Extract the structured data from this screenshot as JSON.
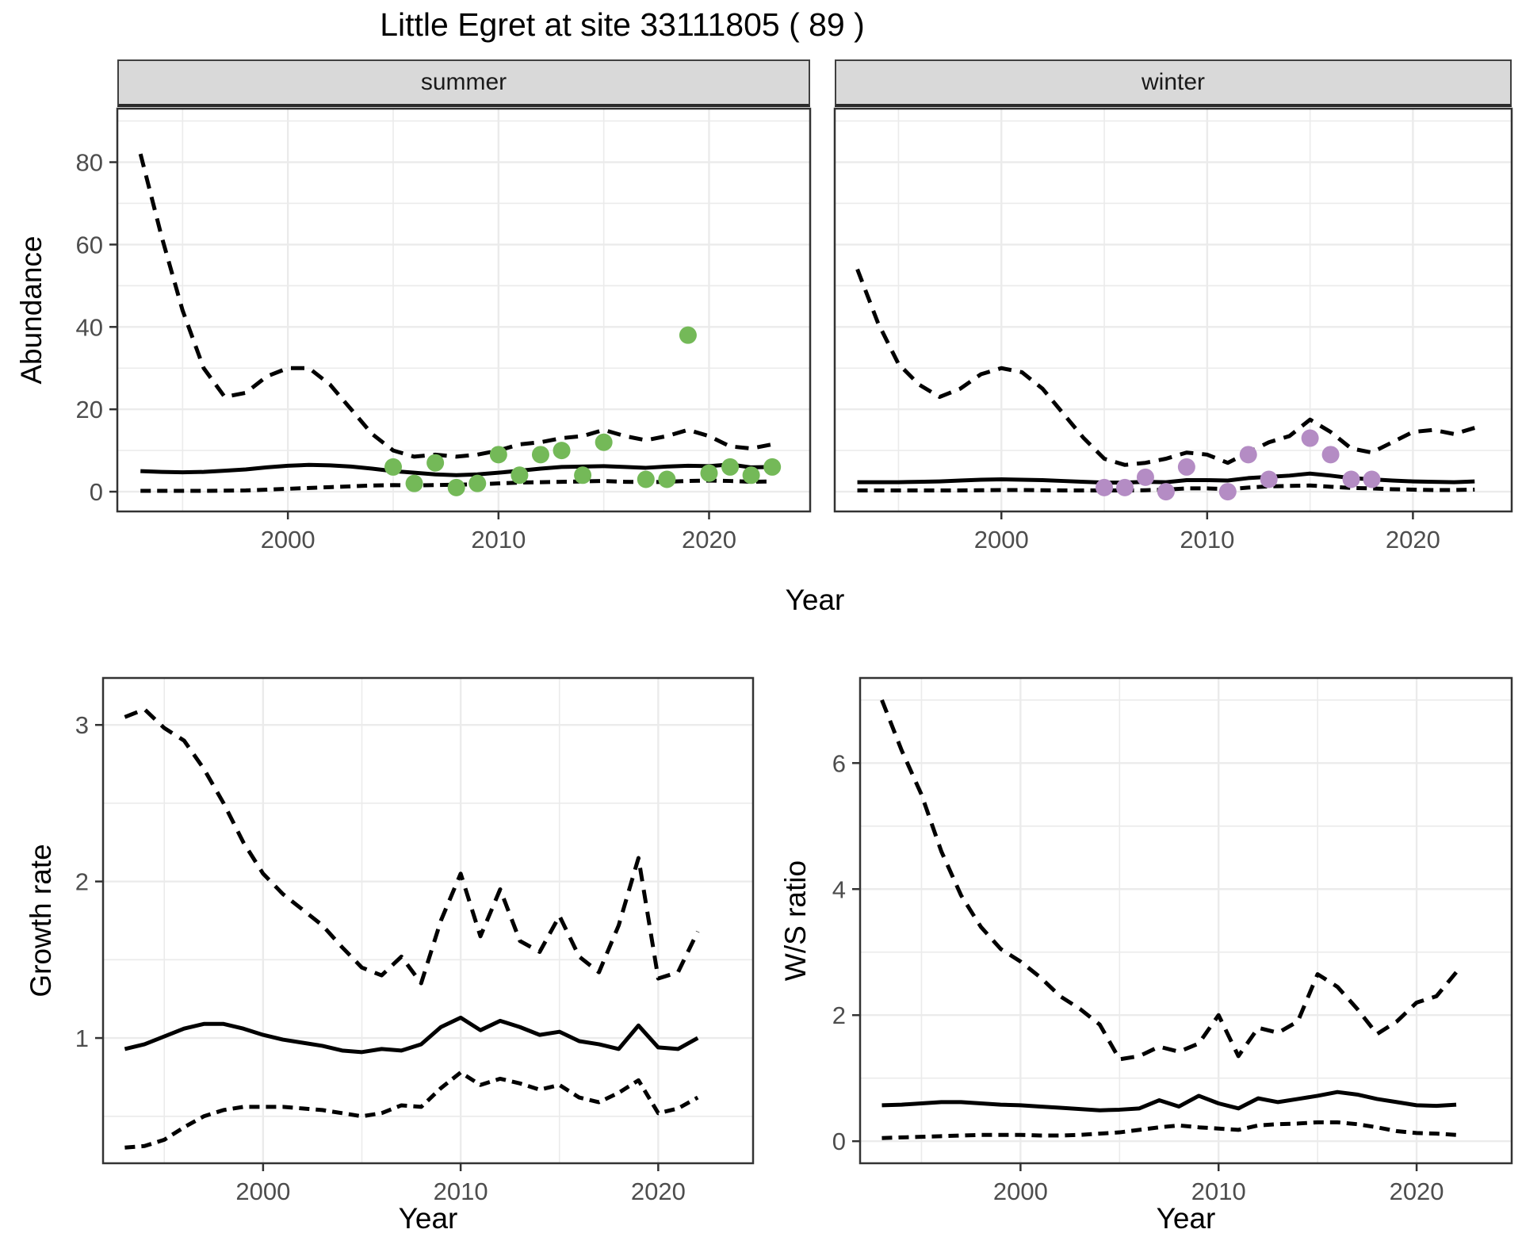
{
  "title": "Little Egret at site 33111805 ( 89 )",
  "facets": [
    {
      "label": "summer"
    },
    {
      "label": "winter"
    }
  ],
  "axes": {
    "x_label": "Year",
    "x_ticks": [
      2000,
      2010,
      2020
    ],
    "abundance_label": "Abundance",
    "abundance_ticks": [
      0,
      20,
      40,
      60,
      80
    ],
    "growth_label": "Growth rate",
    "growth_ticks": [
      1,
      2,
      3
    ],
    "ws_label": "W/S ratio",
    "ws_ticks": [
      0,
      2,
      4,
      6
    ]
  },
  "colors": {
    "point_summer": "#74b958",
    "point_winter": "#b48cc4",
    "line": "#000000",
    "grid": "#ebebeb",
    "strip_bg": "#d9d9d9",
    "axis_text": "#4d4d4d",
    "panel_border": "#333333"
  },
  "chart_data": [
    {
      "id": "abundance_summer",
      "type": "line",
      "facet": "summer",
      "ylabel": "Abundance",
      "xlabel": "Year",
      "xlim": [
        1992,
        2025
      ],
      "ylim": [
        -5,
        93
      ],
      "x": [
        1993,
        1994,
        1995,
        1996,
        1997,
        1998,
        1999,
        2000,
        2001,
        2002,
        2003,
        2004,
        2005,
        2006,
        2007,
        2008,
        2009,
        2010,
        2011,
        2012,
        2013,
        2014,
        2015,
        2016,
        2017,
        2018,
        2019,
        2020,
        2021,
        2022,
        2023
      ],
      "series": [
        {
          "name": "upper_ci",
          "style": "dashed",
          "values": [
            82,
            62,
            44,
            30,
            23,
            24,
            28,
            30,
            30,
            26,
            20,
            14,
            10,
            8.5,
            9,
            8.5,
            9,
            10,
            11.5,
            12,
            13,
            13.5,
            15,
            13.5,
            12.5,
            13.5,
            15,
            13.5,
            11,
            10.5,
            11.5
          ]
        },
        {
          "name": "median",
          "style": "solid",
          "values": [
            5,
            4.8,
            4.7,
            4.8,
            5.1,
            5.4,
            5.9,
            6.3,
            6.5,
            6.4,
            6.1,
            5.6,
            5,
            4.6,
            4.2,
            4,
            4.2,
            4.6,
            5.1,
            5.6,
            6,
            6.1,
            6.2,
            6,
            5.8,
            6.1,
            6.3,
            6.2,
            6.6,
            5.9,
            6
          ]
        },
        {
          "name": "lower_ci",
          "style": "dashed",
          "values": [
            0.2,
            0.2,
            0.2,
            0.2,
            0.25,
            0.3,
            0.5,
            0.7,
            0.9,
            1.1,
            1.3,
            1.5,
            1.6,
            1.5,
            1.6,
            1.7,
            1.8,
            2,
            2.2,
            2.3,
            2.4,
            2.5,
            2.6,
            2.4,
            2.3,
            2.4,
            2.6,
            2.7,
            2.6,
            2.4,
            2.5
          ]
        }
      ],
      "points": [
        [
          2005,
          6
        ],
        [
          2006,
          2
        ],
        [
          2007,
          7
        ],
        [
          2008,
          1
        ],
        [
          2009,
          2
        ],
        [
          2010,
          9
        ],
        [
          2011,
          4
        ],
        [
          2012,
          9
        ],
        [
          2013,
          10
        ],
        [
          2014,
          4
        ],
        [
          2015,
          12
        ],
        [
          2017,
          3
        ],
        [
          2018,
          3
        ],
        [
          2019,
          38
        ],
        [
          2020,
          4.5
        ],
        [
          2021,
          6
        ],
        [
          2022,
          4
        ],
        [
          2023,
          6
        ]
      ],
      "point_color": "#74b958"
    },
    {
      "id": "abundance_winter",
      "type": "line",
      "facet": "winter",
      "ylabel": "Abundance",
      "xlabel": "Year",
      "xlim": [
        1992,
        2025
      ],
      "ylim": [
        -5,
        93
      ],
      "x": [
        1993,
        1994,
        1995,
        1996,
        1997,
        1998,
        1999,
        2000,
        2001,
        2002,
        2003,
        2004,
        2005,
        2006,
        2007,
        2008,
        2009,
        2010,
        2011,
        2012,
        2013,
        2014,
        2015,
        2016,
        2017,
        2018,
        2019,
        2020,
        2021,
        2022,
        2023
      ],
      "series": [
        {
          "name": "upper_ci",
          "style": "dashed",
          "values": [
            54,
            41,
            31,
            26,
            23,
            25,
            28.5,
            30,
            29,
            25,
            19,
            13,
            8,
            6.5,
            7,
            8,
            9.5,
            9,
            7,
            9.5,
            12,
            13.5,
            17.5,
            14.5,
            10.5,
            9.5,
            12,
            14.5,
            15,
            14,
            15.5
          ]
        },
        {
          "name": "median",
          "style": "solid",
          "values": [
            2.3,
            2.3,
            2.3,
            2.4,
            2.5,
            2.7,
            2.9,
            3,
            2.9,
            2.8,
            2.6,
            2.4,
            2.2,
            2.2,
            2.4,
            2.3,
            2.8,
            2.8,
            2.7,
            3.3,
            3.6,
            3.9,
            4.4,
            3.9,
            3.3,
            3,
            2.7,
            2.5,
            2.4,
            2.3,
            2.5
          ]
        },
        {
          "name": "lower_ci",
          "style": "dashed",
          "values": [
            0.3,
            0.3,
            0.3,
            0.3,
            0.3,
            0.3,
            0.35,
            0.4,
            0.4,
            0.35,
            0.3,
            0.3,
            0.3,
            0.3,
            0.35,
            0.5,
            0.8,
            0.8,
            0.6,
            1,
            1.3,
            1.4,
            1.5,
            1.2,
            0.9,
            0.8,
            0.6,
            0.5,
            0.4,
            0.4,
            0.5
          ]
        }
      ],
      "points": [
        [
          2005,
          1
        ],
        [
          2006,
          1
        ],
        [
          2007,
          3.5
        ],
        [
          2008,
          0
        ],
        [
          2009,
          6
        ],
        [
          2011,
          0
        ],
        [
          2012,
          9
        ],
        [
          2013,
          3
        ],
        [
          2015,
          13
        ],
        [
          2016,
          9
        ],
        [
          2017,
          3
        ],
        [
          2018,
          3
        ]
      ],
      "point_color": "#b48cc4"
    },
    {
      "id": "growth_rate",
      "type": "line",
      "ylabel": "Growth rate",
      "xlabel": "Year",
      "xlim": [
        1992,
        2025
      ],
      "ylim": [
        0.2,
        3.3
      ],
      "x": [
        1993,
        1994,
        1995,
        1996,
        1997,
        1998,
        1999,
        2000,
        2001,
        2002,
        2003,
        2004,
        2005,
        2006,
        2007,
        2008,
        2009,
        2010,
        2011,
        2012,
        2013,
        2014,
        2015,
        2016,
        2017,
        2018,
        2019,
        2020,
        2021,
        2022
      ],
      "series": [
        {
          "name": "upper_ci",
          "style": "dashed",
          "values": [
            3.05,
            3.1,
            2.98,
            2.9,
            2.72,
            2.5,
            2.25,
            2.05,
            1.92,
            1.82,
            1.72,
            1.58,
            1.45,
            1.4,
            1.52,
            1.35,
            1.75,
            2.05,
            1.65,
            1.95,
            1.62,
            1.55,
            1.78,
            1.52,
            1.42,
            1.72,
            2.15,
            1.38,
            1.42,
            1.68
          ]
        },
        {
          "name": "median",
          "style": "solid",
          "values": [
            0.93,
            0.96,
            1.01,
            1.06,
            1.09,
            1.09,
            1.06,
            1.02,
            0.99,
            0.97,
            0.95,
            0.92,
            0.91,
            0.93,
            0.92,
            0.96,
            1.07,
            1.13,
            1.05,
            1.11,
            1.07,
            1.02,
            1.04,
            0.98,
            0.96,
            0.93,
            1.08,
            0.94,
            0.93,
            1.0
          ]
        },
        {
          "name": "lower_ci",
          "style": "dashed",
          "values": [
            0.3,
            0.31,
            0.35,
            0.43,
            0.5,
            0.54,
            0.56,
            0.56,
            0.56,
            0.55,
            0.54,
            0.52,
            0.5,
            0.52,
            0.57,
            0.56,
            0.68,
            0.78,
            0.7,
            0.74,
            0.71,
            0.67,
            0.7,
            0.62,
            0.59,
            0.65,
            0.73,
            0.52,
            0.55,
            0.62
          ]
        }
      ],
      "points": [],
      "point_color": "#000000"
    },
    {
      "id": "ws_ratio",
      "type": "line",
      "ylabel": "W/S ratio",
      "xlabel": "Year",
      "xlim": [
        1992,
        2025
      ],
      "ylim": [
        -0.35,
        7.35
      ],
      "x": [
        1993,
        1994,
        1995,
        1996,
        1997,
        1998,
        1999,
        2000,
        2001,
        2002,
        2003,
        2004,
        2005,
        2006,
        2007,
        2008,
        2009,
        2010,
        2011,
        2012,
        2013,
        2014,
        2015,
        2016,
        2017,
        2018,
        2019,
        2020,
        2021,
        2022
      ],
      "series": [
        {
          "name": "upper_ci",
          "style": "dashed",
          "values": [
            7,
            6.2,
            5.5,
            4.6,
            3.9,
            3.4,
            3.05,
            2.85,
            2.6,
            2.3,
            2.1,
            1.85,
            1.3,
            1.35,
            1.5,
            1.42,
            1.55,
            2,
            1.35,
            1.8,
            1.72,
            1.9,
            2.65,
            2.45,
            2.1,
            1.7,
            1.9,
            2.2,
            2.3,
            2.68
          ]
        },
        {
          "name": "median",
          "style": "solid",
          "values": [
            0.57,
            0.58,
            0.6,
            0.62,
            0.62,
            0.6,
            0.58,
            0.57,
            0.55,
            0.53,
            0.51,
            0.49,
            0.5,
            0.52,
            0.65,
            0.55,
            0.72,
            0.6,
            0.52,
            0.68,
            0.62,
            0.67,
            0.72,
            0.78,
            0.74,
            0.67,
            0.62,
            0.57,
            0.56,
            0.58
          ]
        },
        {
          "name": "lower_ci",
          "style": "dashed",
          "values": [
            0.05,
            0.06,
            0.07,
            0.08,
            0.09,
            0.1,
            0.1,
            0.1,
            0.09,
            0.09,
            0.1,
            0.12,
            0.14,
            0.18,
            0.22,
            0.25,
            0.22,
            0.2,
            0.18,
            0.25,
            0.27,
            0.28,
            0.3,
            0.3,
            0.27,
            0.22,
            0.16,
            0.13,
            0.12,
            0.1
          ]
        }
      ],
      "points": [],
      "point_color": "#000000"
    }
  ]
}
